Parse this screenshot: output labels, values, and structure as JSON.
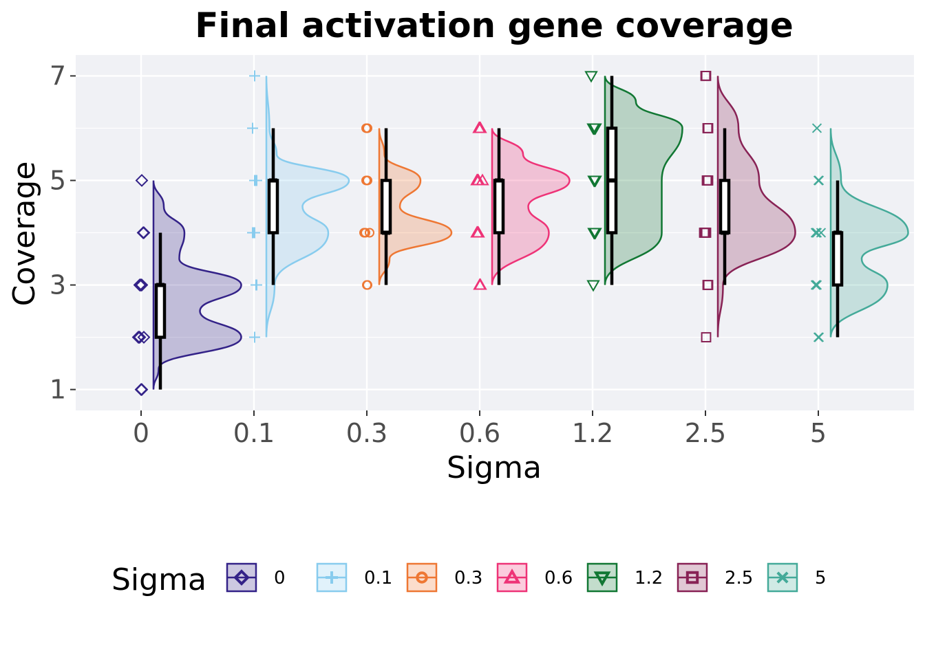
{
  "chart_data": {
    "type": "raincloud",
    "title": "Final activation gene coverage",
    "xlabel": "Sigma",
    "ylabel": "Coverage",
    "ylim": [
      0.6,
      7.4
    ],
    "yticks": [
      1,
      3,
      5,
      7
    ],
    "categories": [
      "0",
      "0.1",
      "0.3",
      "0.6",
      "1.2",
      "2.5",
      "5"
    ],
    "grid": true,
    "legend": {
      "title": "Sigma",
      "position": "bottom",
      "entries": [
        "0",
        "0.1",
        "0.3",
        "0.6",
        "1.2",
        "2.5",
        "5"
      ]
    },
    "series": [
      {
        "name": "0",
        "color": "#332288",
        "marker": "diamond",
        "box": {
          "min": 1,
          "q1": 2,
          "median": 3,
          "q3": 3,
          "max": 4
        },
        "density": [
          [
            1,
            0.0
          ],
          [
            1.4,
            0.05
          ],
          [
            2,
            0.85
          ],
          [
            2.5,
            0.45
          ],
          [
            3,
            0.85
          ],
          [
            3.5,
            0.25
          ],
          [
            4,
            0.3
          ],
          [
            4.5,
            0.1
          ],
          [
            5,
            0.0
          ]
        ],
        "points": [
          1,
          1,
          2,
          2,
          2,
          2,
          3,
          3,
          3,
          3,
          4,
          4,
          5
        ]
      },
      {
        "name": "0.1",
        "color": "#88CCEE",
        "marker": "plus",
        "box": {
          "min": 3,
          "q1": 4,
          "median": 5,
          "q3": 5,
          "max": 6
        },
        "density": [
          [
            2,
            0.0
          ],
          [
            3,
            0.08
          ],
          [
            4,
            0.6
          ],
          [
            4.5,
            0.35
          ],
          [
            5,
            0.8
          ],
          [
            5.5,
            0.1
          ],
          [
            6,
            0.03
          ],
          [
            7,
            0.0
          ]
        ],
        "points": [
          2,
          3,
          3,
          4,
          4,
          4,
          4,
          5,
          5,
          5,
          5,
          6,
          7
        ]
      },
      {
        "name": "0.3",
        "color": "#EE7733",
        "marker": "circle",
        "box": {
          "min": 3,
          "q1": 4,
          "median": 4,
          "q3": 5,
          "max": 6
        },
        "density": [
          [
            3,
            0.0
          ],
          [
            3.5,
            0.1
          ],
          [
            4,
            0.7
          ],
          [
            4.5,
            0.2
          ],
          [
            5,
            0.4
          ],
          [
            5.5,
            0.05
          ],
          [
            6,
            0.0
          ]
        ],
        "points": [
          3,
          3,
          4,
          4,
          4,
          4,
          5,
          5,
          5,
          6,
          6,
          6
        ]
      },
      {
        "name": "0.6",
        "color": "#EE3377",
        "marker": "triangle-up",
        "box": {
          "min": 3,
          "q1": 4,
          "median": 5,
          "q3": 5,
          "max": 6
        },
        "density": [
          [
            3,
            0.0
          ],
          [
            4,
            0.55
          ],
          [
            4.5,
            0.35
          ],
          [
            5,
            0.75
          ],
          [
            5.5,
            0.3
          ],
          [
            6,
            0.0
          ]
        ],
        "points": [
          3,
          3,
          4,
          4,
          4,
          5,
          5,
          5,
          5,
          6,
          6,
          6
        ]
      },
      {
        "name": "1.2",
        "color": "#117733",
        "marker": "triangle-down",
        "box": {
          "min": 3,
          "q1": 4,
          "median": 5,
          "q3": 6,
          "max": 7
        },
        "density": [
          [
            3,
            0.0
          ],
          [
            4,
            0.55
          ],
          [
            5,
            0.55
          ],
          [
            6,
            0.75
          ],
          [
            6.5,
            0.3
          ],
          [
            7,
            0.0
          ]
        ],
        "points": [
          3,
          4,
          4,
          4,
          5,
          5,
          5,
          6,
          6,
          6,
          6,
          7
        ]
      },
      {
        "name": "2.5",
        "color": "#882255",
        "marker": "square",
        "box": {
          "min": 3,
          "q1": 4,
          "median": 4,
          "q3": 5,
          "max": 6
        },
        "density": [
          [
            2,
            0.0
          ],
          [
            3,
            0.05
          ],
          [
            4,
            0.75
          ],
          [
            5,
            0.4
          ],
          [
            6,
            0.2
          ],
          [
            7,
            0.0
          ]
        ],
        "points": [
          2,
          3,
          3,
          4,
          4,
          4,
          4,
          5,
          5,
          5,
          6,
          6,
          7,
          7
        ]
      },
      {
        "name": "5",
        "color": "#44AA99",
        "marker": "x",
        "box": {
          "min": 2,
          "q1": 3,
          "median": 4,
          "q3": 4,
          "max": 5
        },
        "density": [
          [
            2,
            0.0
          ],
          [
            3,
            0.55
          ],
          [
            3.5,
            0.3
          ],
          [
            4,
            0.75
          ],
          [
            5,
            0.1
          ],
          [
            6,
            0.0
          ]
        ],
        "points": [
          2,
          2,
          3,
          3,
          3,
          4,
          4,
          4,
          4,
          5,
          5,
          6
        ]
      }
    ]
  }
}
